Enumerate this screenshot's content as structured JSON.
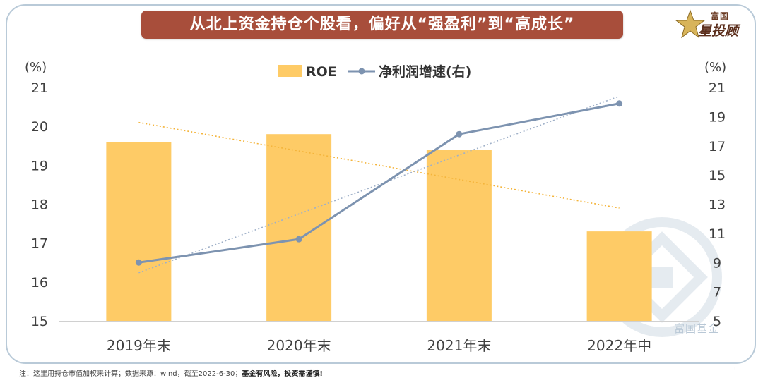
{
  "title": "从北上资金持仓个股看，偏好从“强盈利”到“高成长”",
  "brand": {
    "top": "富国",
    "bottom": "星投顾",
    "watermark": "富国基金"
  },
  "footnote": {
    "normal": "注：这里用持仓市值加权来计算；数据来源：wind，截至2022-6-30；",
    "bold": "基金有风险，投资需谨慎!"
  },
  "corner_mark": "'",
  "colors": {
    "bar": "#FECB66",
    "line": "#7D93B0",
    "bar_trend": "#F4B43A",
    "line_trend": "#9FB0C8",
    "banner": "#A84E3B",
    "axis_text": "#404040"
  },
  "chart_data": {
    "type": "bar",
    "title": "",
    "categories": [
      "2019年末",
      "2020年末",
      "2021年末",
      "2022年中"
    ],
    "series": [
      {
        "name": "ROE",
        "type": "bar",
        "axis": "left",
        "values": [
          19.6,
          19.8,
          19.4,
          17.3
        ]
      },
      {
        "name": "净利润增速(右)",
        "type": "line",
        "axis": "right",
        "values": [
          9.0,
          10.6,
          17.8,
          19.9
        ]
      }
    ],
    "trendlines": [
      {
        "series": "ROE",
        "style": "dotted",
        "start": 20.1,
        "end": 17.9
      },
      {
        "series": "净利润增速(右)",
        "style": "dotted",
        "start": 8.3,
        "end": 20.4
      }
    ],
    "left_axis": {
      "unit": "(%)",
      "ylim": [
        15,
        21
      ],
      "ticks": [
        "15",
        "16",
        "17",
        "18",
        "19",
        "20",
        "21"
      ]
    },
    "right_axis": {
      "unit": "(%)",
      "ylim": [
        5,
        21
      ],
      "ticks": [
        "5",
        "7",
        "9",
        "11",
        "13",
        "15",
        "17",
        "19",
        "21"
      ]
    },
    "legend": [
      {
        "label": "ROE",
        "kind": "bar"
      },
      {
        "label": "净利润增速(右)",
        "kind": "line"
      }
    ],
    "legend_position": "top-center",
    "grid": false
  }
}
